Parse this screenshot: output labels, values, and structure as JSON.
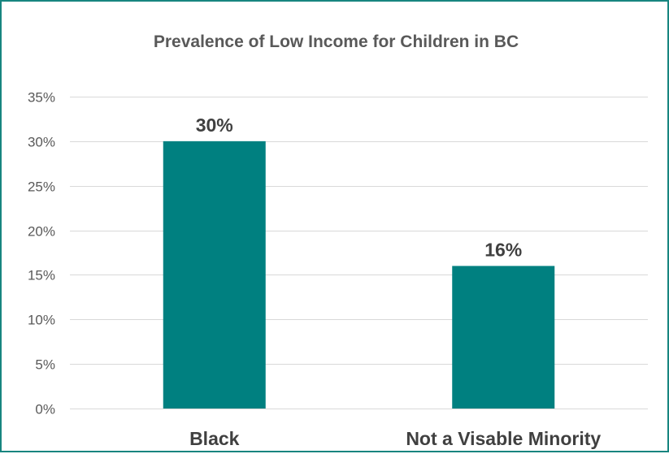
{
  "chart_data": {
    "type": "bar",
    "title": "Prevalence of Low Income for Children in BC",
    "categories": [
      "Black",
      "Not a Visable Minority"
    ],
    "values": [
      30,
      16
    ],
    "data_labels": [
      "30%",
      "16%"
    ],
    "ylim": [
      0,
      35
    ],
    "y_ticks": [
      0,
      5,
      10,
      15,
      20,
      25,
      30,
      35
    ],
    "y_tick_labels": [
      "0%",
      "5%",
      "10%",
      "15%",
      "20%",
      "25%",
      "30%",
      "35%"
    ],
    "xlabel": "",
    "ylabel": "",
    "grid": true,
    "legend": "none",
    "bar_color": "#008080",
    "border_color": "#17857f",
    "gridline_color": "#d9d9d9"
  }
}
